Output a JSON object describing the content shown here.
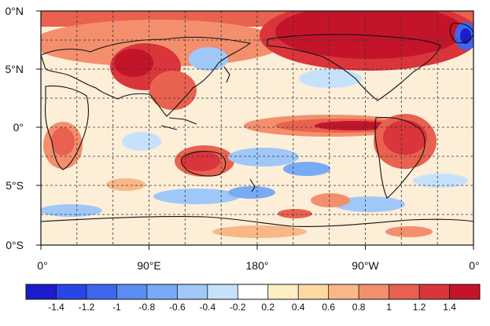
{
  "map": {
    "lat_labels": [
      "0°N",
      "5°N",
      "0°",
      "5°S",
      "0°S"
    ],
    "lon_labels": [
      "0°",
      "90°E",
      "180°",
      "90°W",
      "0°"
    ],
    "projection": "cylindrical equidistant, 0°–360° longitude",
    "grid": "dashed",
    "coastlines": true
  },
  "colorbar": {
    "tick_labels": [
      "-1.4",
      "-1.2",
      "-1",
      "-0.8",
      "-0.6",
      "-0.4",
      "-0.2",
      "0.2",
      "0.4",
      "0.6",
      "0.8",
      "1",
      "1.2",
      "1.4"
    ],
    "bin_colors": [
      "#1c1ccd",
      "#2a45e6",
      "#3d68ee",
      "#5a8cf2",
      "#79aaf6",
      "#9fc8f8",
      "#c6e2fb",
      "#ffffff",
      "#fdeec4",
      "#fcd9a1",
      "#f9b787",
      "#f38f6d",
      "#e9614f",
      "#d9353a",
      "#c4142a"
    ],
    "position": "bottom"
  },
  "anomaly_features": [
    {
      "name": "arctic-warm",
      "sign": "positive",
      "intensity": 1.5
    },
    {
      "name": "central-asia-warm",
      "sign": "positive",
      "intensity": 1.2
    },
    {
      "name": "east-pacific-el-nino",
      "sign": "positive",
      "intensity": 1.2
    },
    {
      "name": "south-america-warm",
      "sign": "positive",
      "intensity": 1.2
    },
    {
      "name": "australia-warm",
      "sign": "positive",
      "intensity": 1.0
    },
    {
      "name": "southern-pacific-cool",
      "sign": "negative",
      "intensity": -0.6
    },
    {
      "name": "greenland-cool",
      "sign": "negative",
      "intensity": -1.2
    }
  ]
}
